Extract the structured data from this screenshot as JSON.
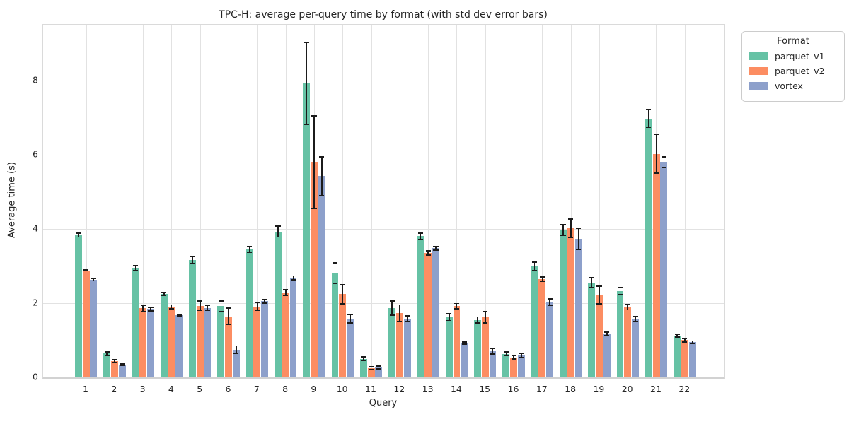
{
  "figure": {
    "title": "TPC-H: average per-query time by format (with std dev error bars)",
    "xlabel": "Query",
    "ylabel": "Average time (s)"
  },
  "legend": {
    "title": "Format",
    "items": [
      "parquet_v1",
      "parquet_v2",
      "vortex"
    ]
  },
  "chart_data": {
    "type": "bar",
    "title": "TPC-H: average per-query time by format (with std dev error bars)",
    "xlabel": "Query",
    "ylabel": "Average time (s)",
    "categories": [
      "1",
      "2",
      "3",
      "4",
      "5",
      "6",
      "7",
      "8",
      "9",
      "10",
      "11",
      "12",
      "13",
      "14",
      "15",
      "16",
      "17",
      "18",
      "19",
      "20",
      "21",
      "22"
    ],
    "series": [
      {
        "name": "parquet_v1",
        "color": "#66c2a5",
        "values": [
          3.83,
          0.64,
          2.95,
          2.25,
          3.16,
          1.92,
          3.45,
          3.93,
          7.92,
          2.8,
          0.5,
          1.86,
          3.8,
          1.62,
          1.55,
          0.63,
          2.99,
          3.97,
          2.55,
          2.33,
          6.97,
          1.12
        ],
        "std": [
          0.05,
          0.05,
          0.07,
          0.04,
          0.1,
          0.14,
          0.08,
          0.15,
          1.1,
          0.28,
          0.05,
          0.19,
          0.08,
          0.09,
          0.08,
          0.05,
          0.11,
          0.14,
          0.13,
          0.1,
          0.24,
          0.04
        ]
      },
      {
        "name": "parquet_v2",
        "color": "#fc8d62",
        "values": [
          2.85,
          0.44,
          1.86,
          1.9,
          1.93,
          1.64,
          1.91,
          2.29,
          5.8,
          2.24,
          0.25,
          1.73,
          3.35,
          1.92,
          1.62,
          0.54,
          2.64,
          4.01,
          2.22,
          1.89,
          6.02,
          1.0
        ],
        "std": [
          0.04,
          0.03,
          0.08,
          0.05,
          0.12,
          0.22,
          0.11,
          0.08,
          1.25,
          0.26,
          0.04,
          0.22,
          0.06,
          0.07,
          0.16,
          0.04,
          0.06,
          0.25,
          0.24,
          0.07,
          0.52,
          0.05
        ]
      },
      {
        "name": "vortex",
        "color": "#8da0cb",
        "values": [
          2.63,
          0.34,
          1.84,
          1.68,
          1.87,
          0.75,
          2.05,
          2.68,
          5.42,
          1.58,
          0.27,
          1.58,
          3.48,
          0.92,
          0.7,
          0.59,
          2.02,
          3.73,
          1.17,
          1.57,
          5.8,
          0.95
        ],
        "std": [
          0.03,
          0.02,
          0.05,
          0.02,
          0.07,
          0.1,
          0.05,
          0.05,
          0.52,
          0.11,
          0.04,
          0.08,
          0.05,
          0.03,
          0.07,
          0.05,
          0.09,
          0.29,
          0.05,
          0.07,
          0.14,
          0.03
        ]
      }
    ],
    "ylim": [
      0,
      9.5
    ],
    "yticks": [
      0,
      2,
      4,
      6,
      8
    ],
    "grid": true,
    "error_bars": "std dev",
    "error_bar_color": "#1b1b1b",
    "legend_title": "Format",
    "legend_position": "outside upper right"
  }
}
